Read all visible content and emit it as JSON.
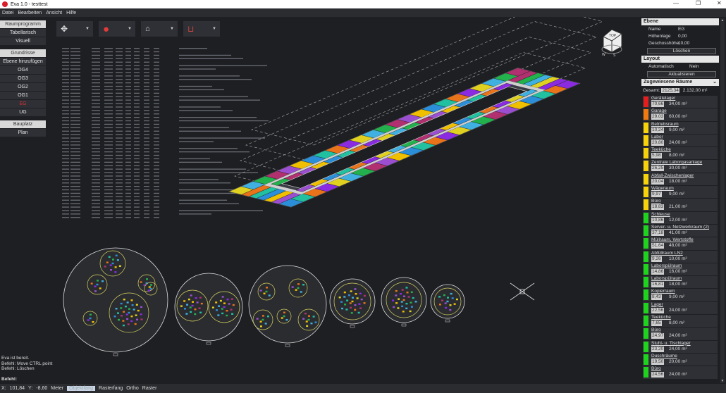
{
  "window": {
    "title": "Eva 1.0 - testtest",
    "controls": [
      "—",
      "❐",
      "✕"
    ]
  },
  "menu": [
    "Datei",
    "Bearbeiten",
    "Ansicht",
    "Hilfe"
  ],
  "sidebar": {
    "raumprogramm": {
      "header": "Raumprogramm",
      "items": [
        "Tabellarisch",
        "Visuell"
      ]
    },
    "grundrisse": {
      "header": "Grundrisse",
      "add": "Ebene hinzufügen",
      "levels": [
        "OG4",
        "OG3",
        "OG2",
        "OG1",
        "EG",
        "UG"
      ],
      "active": "EG"
    },
    "bauplatz": {
      "header": "Bauplatz",
      "items": [
        "Plan"
      ]
    }
  },
  "toolbar": [
    {
      "icon": "move-icon",
      "glyph": "✥"
    },
    {
      "icon": "record-icon",
      "glyph": "●"
    },
    {
      "icon": "house-icon",
      "glyph": "⌂"
    },
    {
      "icon": "room-icon",
      "glyph": "⊔"
    }
  ],
  "accent": "#d8323a",
  "right": {
    "ebene": {
      "header": "Ebene",
      "rows": [
        {
          "k": "Name",
          "v": "EG"
        },
        {
          "k": "Höhenlage",
          "v": "0,00"
        },
        {
          "k": "Geschosshöhe",
          "v": "10,00"
        }
      ],
      "delete": "Löschen"
    },
    "layout": {
      "header": "Layout",
      "rows": [
        {
          "k": "Automatisch",
          "v": "Nein"
        }
      ],
      "refresh": "Aktualisieren"
    },
    "rooms": {
      "header": "Zugewiesene Räume",
      "total_label": "Gesamt:",
      "total_actual": "2125,34",
      "total": "2.132,00 m²",
      "items": [
        {
          "name": "Gerätelager",
          "actual": "70,66",
          "area": "34,00 m²",
          "color": "#e41e1e"
        },
        {
          "name": "Garage",
          "actual": "29,03",
          "area": "60,00 m²",
          "color": "#f07a10"
        },
        {
          "name": "Betriebsraum",
          "actual": "10,24",
          "area": "9,00 m²",
          "color": "#f5d20a"
        },
        {
          "name": "Labor",
          "actual": "20,80",
          "area": "24,00 m²",
          "color": "#f5d20a"
        },
        {
          "name": "Teeküche",
          "actual": "5,98",
          "area": "8,00 m²",
          "color": "#f5d20a"
        },
        {
          "name": "Zentrale Laborgasanlage",
          "actual": "26,25",
          "area": "30,00 m²",
          "color": "#f5d20a"
        },
        {
          "name": "Abfall-Zwischenlager",
          "actual": "20,04",
          "area": "18,00 m²",
          "color": "#f5d20a"
        },
        {
          "name": "Wägeraum",
          "actual": "9,97",
          "area": "9,00 m²",
          "color": "#f5d20a"
        },
        {
          "name": "Büro",
          "actual": "18,83",
          "area": "21,00 m²",
          "color": "#f5d20a"
        },
        {
          "name": "Schleuse",
          "actual": "10,86",
          "area": "12,00 m²",
          "color": "#1ed21e"
        },
        {
          "name": "Server- u. Netzwerkraum (2)",
          "actual": "37,18",
          "area": "41,00 m²",
          "color": "#1ed21e"
        },
        {
          "name": "Müllraum, Wertstoffe",
          "actual": "51,64",
          "area": "48,00 m²",
          "color": "#1ed21e"
        },
        {
          "name": "Abfüllraum LN2",
          "actual": "9,26",
          "area": "10,00 m²",
          "color": "#1ed21e"
        },
        {
          "name": "Laborspülraum",
          "actual": "14,86",
          "area": "16,00 m²",
          "color": "#1ed21e"
        },
        {
          "name": "Laborspülraum",
          "actual": "16,81",
          "area": "18,00 m²",
          "color": "#1ed21e"
        },
        {
          "name": "Kopierraum",
          "actual": "8,43",
          "area": "9,00 m²",
          "color": "#1ed21e"
        },
        {
          "name": "Lager",
          "actual": "22,56",
          "area": "24,00 m²",
          "color": "#1ed21e"
        },
        {
          "name": "Teeküche",
          "actual": "7,65",
          "area": "8,00 m²",
          "color": "#1ed21e"
        },
        {
          "name": "Büro",
          "actual": "24,97",
          "area": "24,00 m²",
          "color": "#1ed21e"
        },
        {
          "name": "Stuhl- u. Tischlager",
          "actual": "23,20",
          "area": "24,00 m²",
          "color": "#1ed21e"
        },
        {
          "name": "Duschräume",
          "actual": "19,50",
          "area": "20,00 m²",
          "color": "#1ed21e"
        },
        {
          "name": "Büro",
          "actual": "24,56",
          "area": "24,00 m²",
          "color": "#1ed21e"
        }
      ]
    }
  },
  "console": {
    "lines": [
      "Eva ist bereit.",
      "Befehl: Move CTRL point",
      "Befehl: Löschen"
    ],
    "prompt": "Befehl:"
  },
  "status": {
    "x_label": "X:",
    "x": "101,84",
    "y_label": "Y:",
    "y": "-8,60",
    "unit": "Meter",
    "toggles": [
      "Objektfang",
      "Rasterfang",
      "Ortho",
      "Raster"
    ],
    "active": "Objektfang"
  },
  "viewcube": {
    "labels": [
      "TOP",
      "W",
      "S"
    ]
  }
}
